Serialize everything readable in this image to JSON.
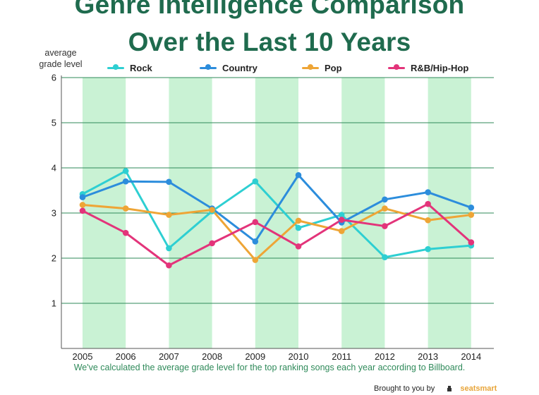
{
  "chart_data": {
    "type": "line",
    "title": "Genre Intelligence Comparison",
    "subtitle": "Over the Last 10 Years",
    "ylabel": "average grade level",
    "xlabel": "",
    "ylim": [
      0,
      6
    ],
    "yticks": [
      "1",
      "2",
      "3",
      "4",
      "5",
      "6"
    ],
    "categories": [
      "2005",
      "2006",
      "2007",
      "2008",
      "2009",
      "2010",
      "2011",
      "2012",
      "2013",
      "2014"
    ],
    "series": [
      {
        "name": "Rock",
        "color": "#2ecfd2",
        "values": [
          3.42,
          3.93,
          2.22,
          3.04,
          3.7,
          2.67,
          2.96,
          2.02,
          2.2,
          2.28
        ]
      },
      {
        "name": "Country",
        "color": "#2c8ddc",
        "values": [
          3.35,
          3.7,
          3.69,
          3.1,
          2.37,
          3.84,
          2.79,
          3.3,
          3.46,
          3.12
        ]
      },
      {
        "name": "Pop",
        "color": "#eea536",
        "values": [
          3.18,
          3.1,
          2.96,
          3.07,
          1.96,
          2.83,
          2.6,
          3.1,
          2.84,
          2.96
        ]
      },
      {
        "name": "R&B/Hip-Hop",
        "color": "#e3347a",
        "values": [
          3.05,
          2.56,
          1.84,
          2.33,
          2.8,
          2.26,
          2.85,
          2.71,
          3.2,
          2.35
        ]
      }
    ],
    "grid": true,
    "legend": "top"
  },
  "caption": "We've calculated the average grade level for the top ranking songs each year according to Billboard.",
  "credit": {
    "prefix": "Brought to you by",
    "brand": "seatsmart"
  }
}
